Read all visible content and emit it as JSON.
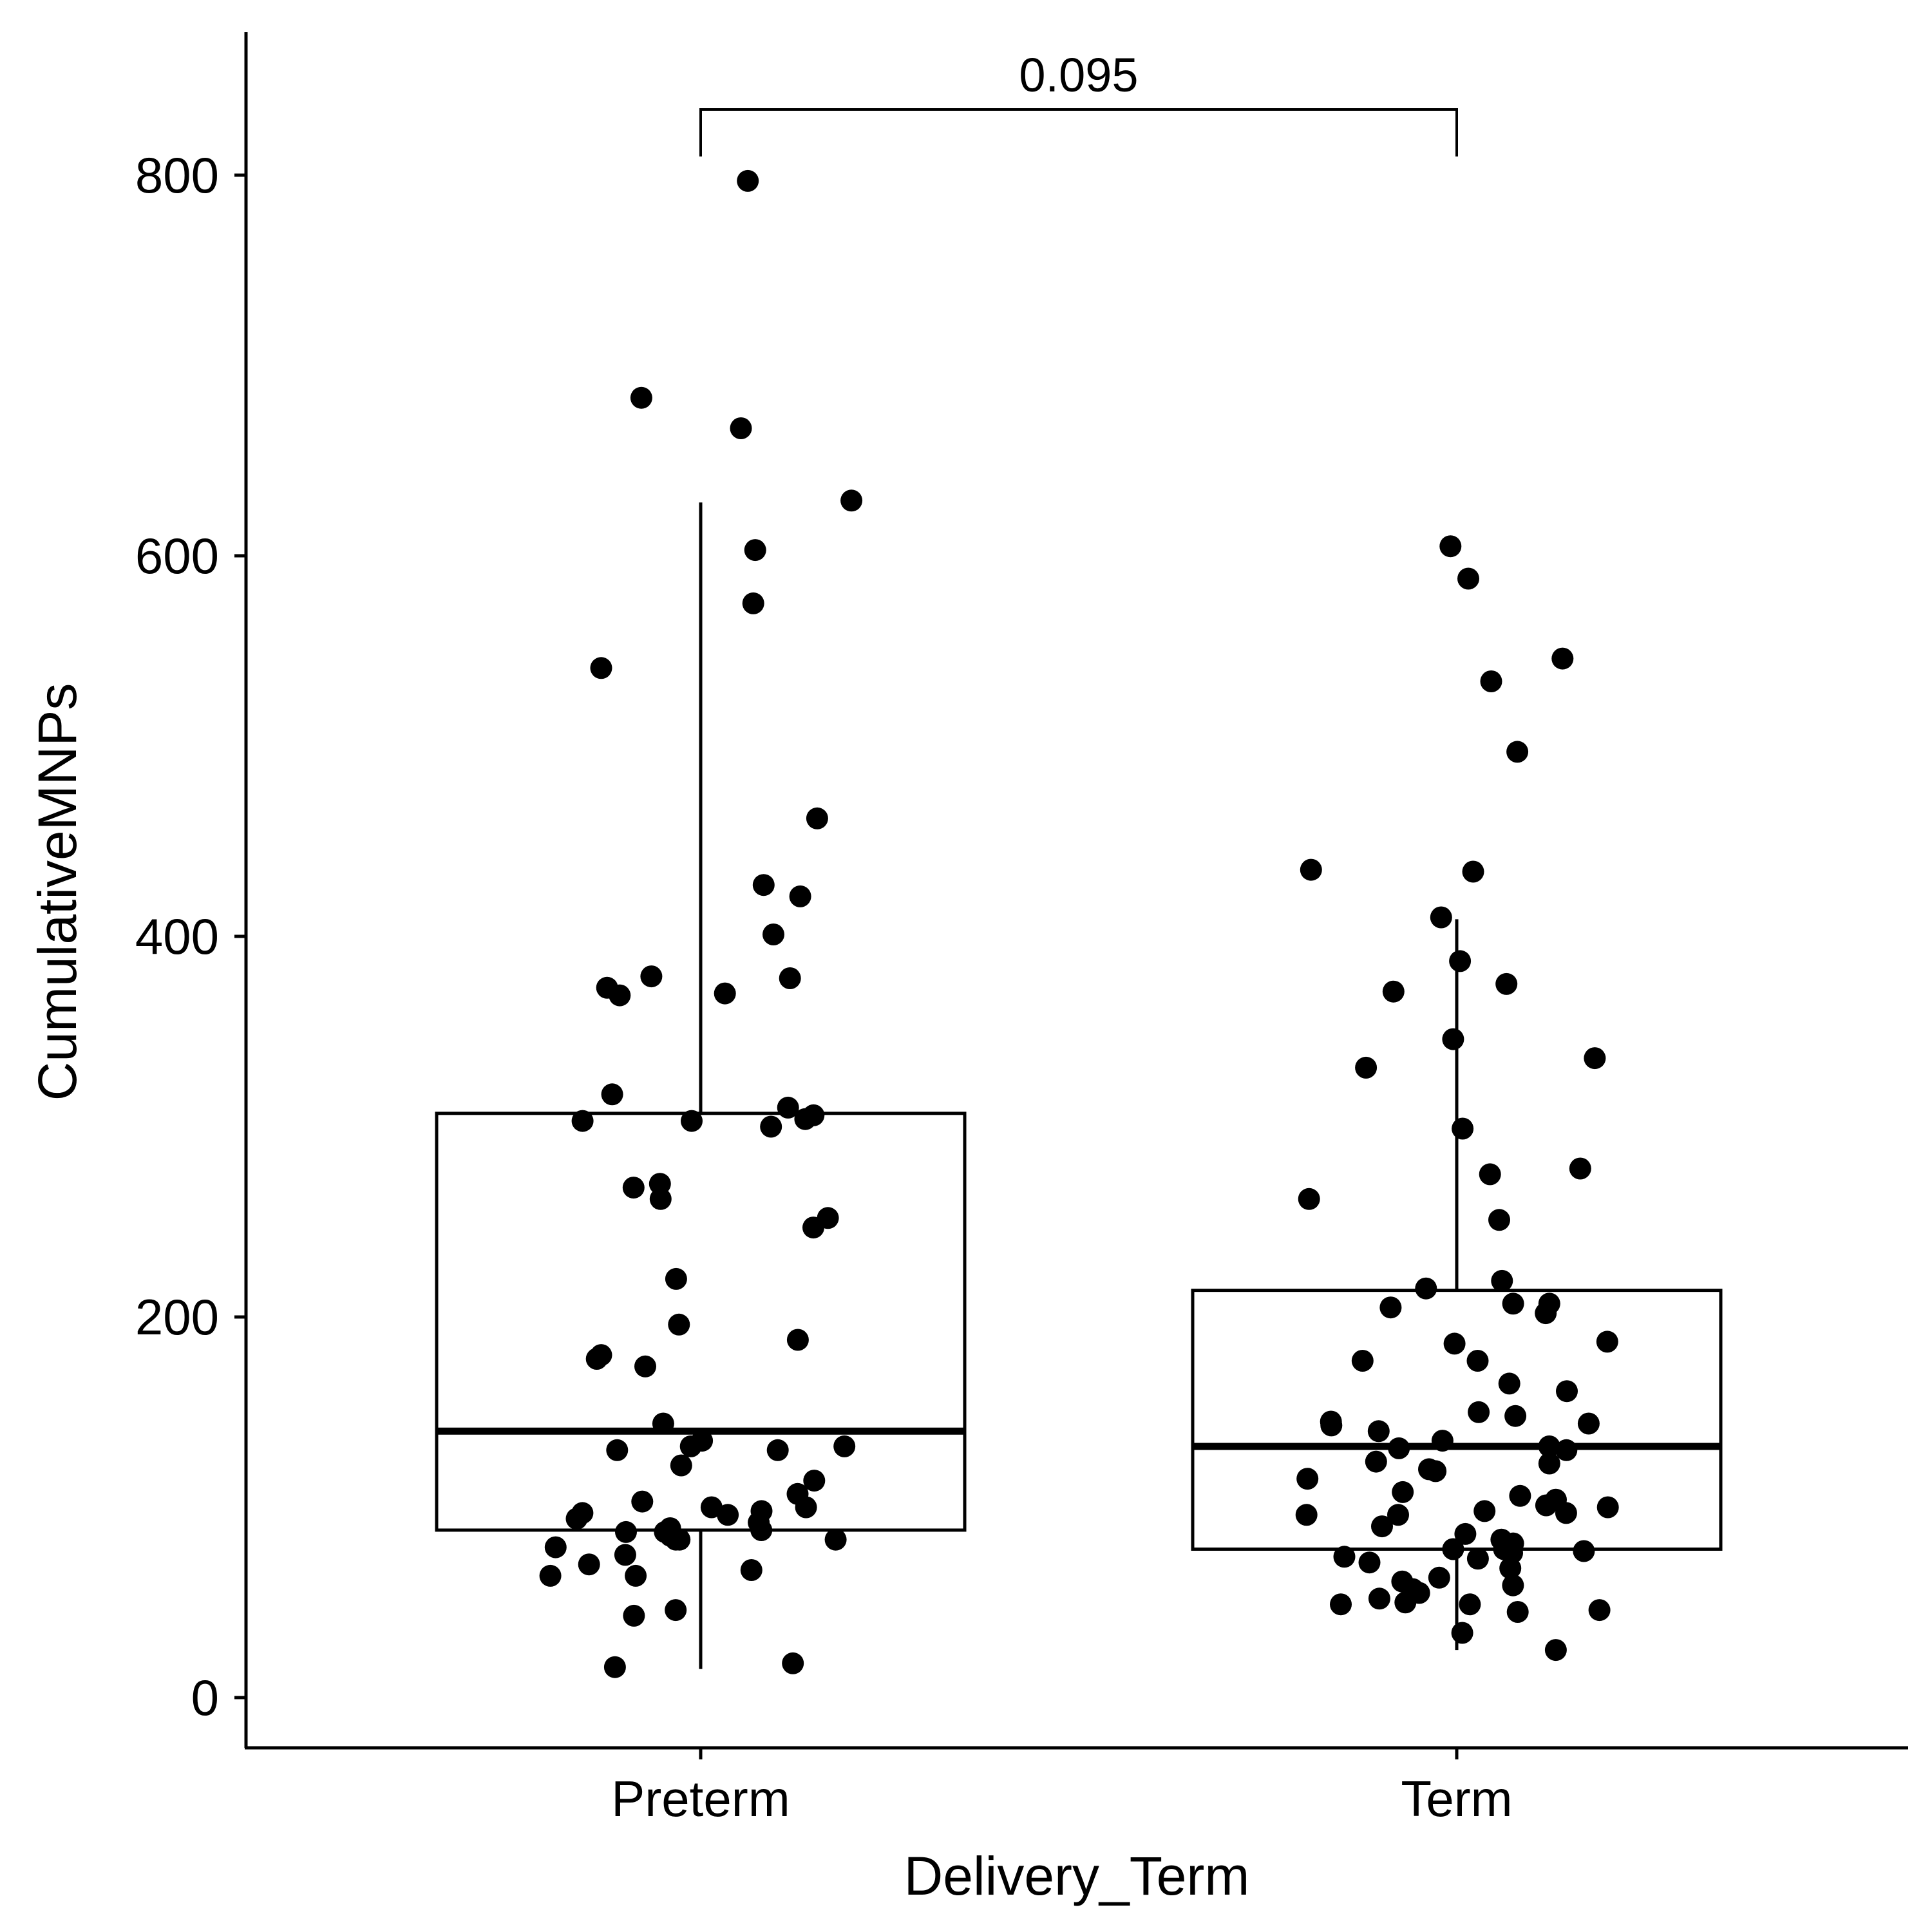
{
  "chart_data": {
    "type": "boxplot",
    "title": "",
    "xlabel": "Delivery_Term",
    "ylabel": "CumulativeMNPs",
    "categories": [
      "Preterm",
      "Term"
    ],
    "ylim": [
      -13,
      880
    ],
    "yticks": [
      0,
      200,
      400,
      600,
      800
    ],
    "grid": false,
    "legend": "none",
    "boxes": [
      {
        "category": "Preterm",
        "q1": 88,
        "median": 140,
        "q3": 307,
        "whisker_low": 15,
        "whisker_high": 628
      },
      {
        "category": "Term",
        "q1": 78,
        "median": 132,
        "q3": 214,
        "whisker_low": 25,
        "whisker_high": 409
      }
    ],
    "points": [
      {
        "category": "Preterm",
        "values": [
          797,
          683,
          667,
          629,
          603,
          575,
          541,
          462,
          427,
          421,
          401,
          379,
          378,
          373,
          370,
          369,
          317,
          310,
          306,
          304,
          303,
          303,
          300,
          270,
          268,
          262,
          252,
          247,
          220,
          196,
          188,
          180,
          178,
          174,
          144,
          135,
          132,
          132,
          130,
          130,
          122,
          114,
          107,
          103,
          100,
          100,
          98,
          97,
          96,
          94,
          92,
          89,
          88,
          87,
          87,
          85,
          83,
          83,
          83,
          79,
          75,
          70,
          67,
          64,
          64,
          43,
          46,
          16,
          18
        ]
      },
      {
        "category": "Term",
        "values": [
          605,
          588,
          546,
          534,
          497,
          435,
          434,
          410,
          387,
          375,
          371,
          346,
          336,
          331,
          299,
          278,
          275,
          262,
          251,
          219,
          215,
          207,
          207,
          205,
          202,
          187,
          186,
          177,
          177,
          165,
          161,
          150,
          148,
          145,
          144,
          143,
          140,
          135,
          132,
          131,
          130,
          124,
          123,
          120,
          119,
          115,
          108,
          106,
          104,
          101,
          100,
          98,
          97,
          96,
          96,
          90,
          86,
          83,
          81,
          78,
          78,
          78,
          77,
          76,
          74,
          73,
          71,
          68,
          63,
          61,
          59,
          57,
          55,
          52,
          50,
          49,
          49,
          46,
          45,
          34,
          25
        ]
      }
    ],
    "comparison": {
      "groups": [
        "Preterm",
        "Term"
      ],
      "label": "0.095"
    }
  }
}
